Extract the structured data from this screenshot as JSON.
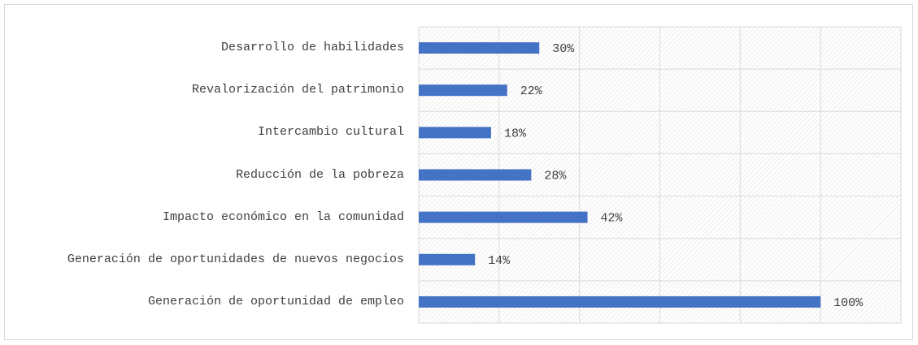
{
  "chart_data": {
    "type": "hbar",
    "categories": [
      "Desarrollo de habilidades",
      "Revalorización del patrimonio",
      "Intercambio cultural",
      "Reducción de la pobreza",
      "Impacto económico en la comunidad",
      "Generación de oportunidades de nuevos negocios",
      "Generación de oportunidad de empleo"
    ],
    "values": [
      30,
      22,
      18,
      28,
      42,
      14,
      100
    ],
    "value_labels": [
      "30%",
      "22%",
      "18%",
      "28%",
      "42%",
      "14%",
      "100%"
    ],
    "color": "#4472c4",
    "xlim": [
      0,
      120
    ],
    "xticks": [
      0,
      20,
      40,
      60,
      80,
      100,
      120
    ],
    "grid": true
  }
}
